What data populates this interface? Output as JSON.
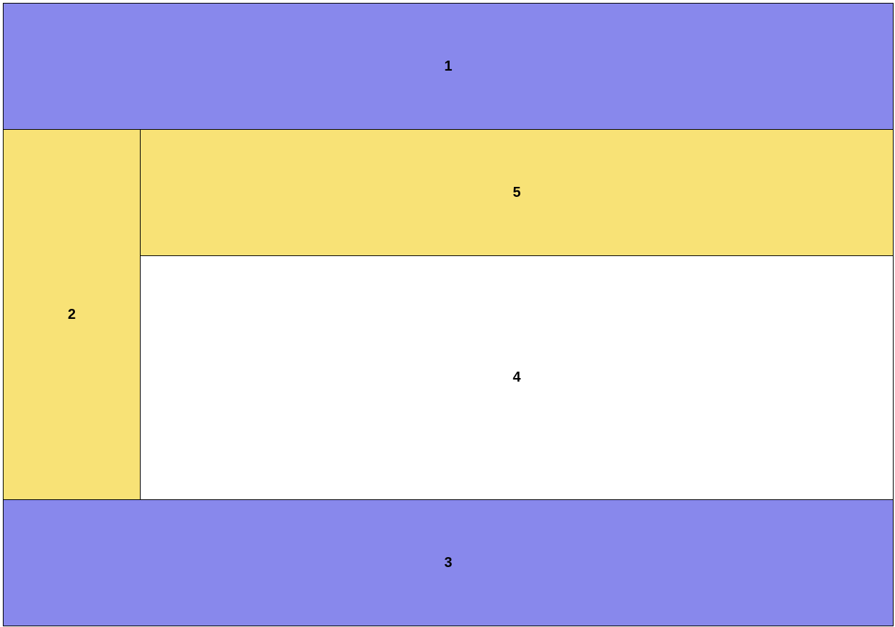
{
  "regions": {
    "r1": {
      "label": "1",
      "color": "#8888EC"
    },
    "r2": {
      "label": "2",
      "color": "#F8E276"
    },
    "r3": {
      "label": "3",
      "color": "#8888EC"
    },
    "r4": {
      "label": "4",
      "color": "#FFFFFF"
    },
    "r5": {
      "label": "5",
      "color": "#F8E276"
    }
  }
}
